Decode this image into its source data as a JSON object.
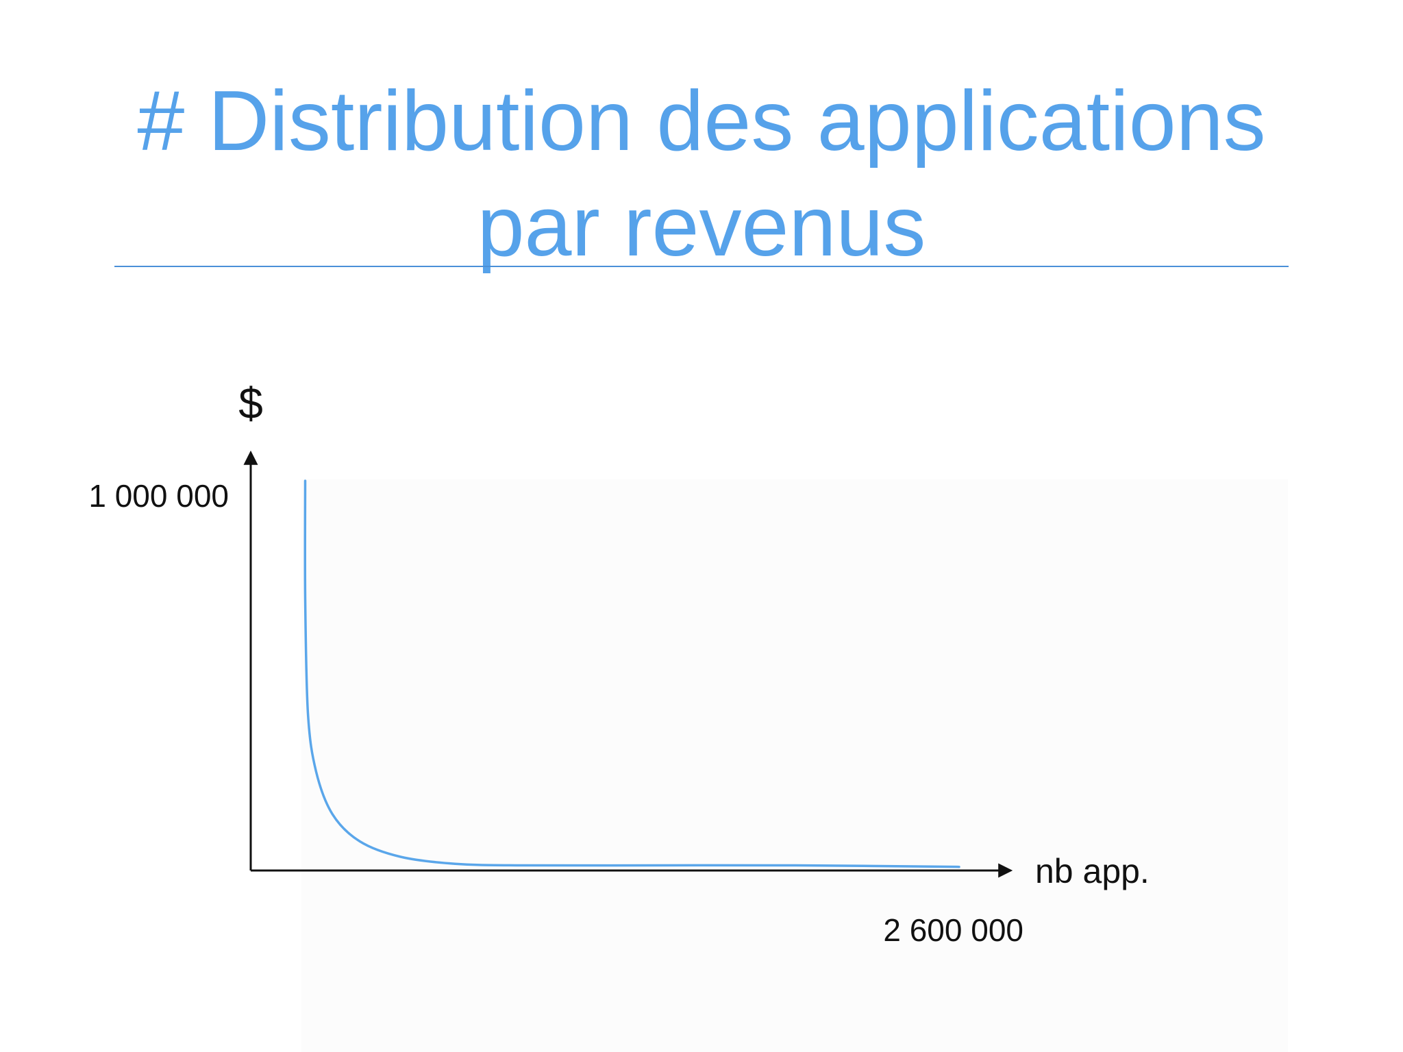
{
  "slide": {
    "title_line1": "# Distribution des applications",
    "title_line2": "par revenus",
    "accent_color": "#56a2ea"
  },
  "chart_data": {
    "type": "line",
    "title": "# Distribution des applications par revenus",
    "ylabel": "$",
    "xlabel": "nb app.",
    "y_tick_label": "1 000 000",
    "x_tick_label": "2 600 000",
    "xlim": [
      0,
      2600000
    ],
    "ylim": [
      0,
      1000000
    ],
    "grid": false,
    "series": [
      {
        "color": "#5aa6ea",
        "x": [
          200000,
          200000,
          210000,
          240000,
          300000,
          400000,
          550000,
          750000,
          1000000,
          1500000,
          2000000,
          2600000
        ],
        "y": [
          1000000,
          700000,
          400000,
          250000,
          140000,
          70000,
          30000,
          12000,
          8000,
          8000,
          8000,
          4000
        ]
      }
    ]
  }
}
